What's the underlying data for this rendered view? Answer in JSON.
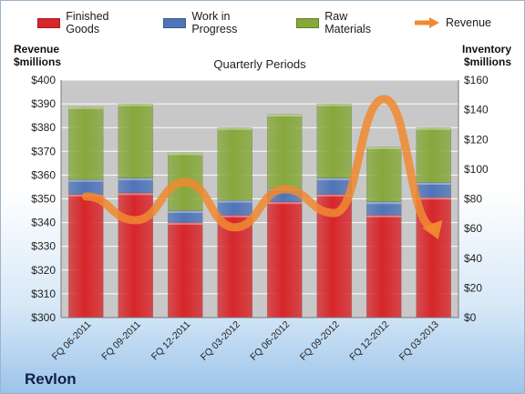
{
  "legend": {
    "finished": "Finished Goods",
    "wip": "Work in Progress",
    "raw": "Raw Materials",
    "revenue": "Revenue"
  },
  "axes": {
    "left_title_line1": "Revenue",
    "left_title_line2": "$millions",
    "right_title_line1": "Inventory",
    "right_title_line2": "$millions"
  },
  "chart_title": "Quarterly Periods",
  "company": "Revlon",
  "colors": {
    "finished": "#d7262a",
    "wip": "#4f74b8",
    "raw": "#86a83b",
    "revenue": "#f08a30",
    "plot_bg": "#c8c8c8"
  },
  "chart_data": {
    "type": "bar",
    "stacked": true,
    "categories": [
      "FQ 06-2011",
      "FQ 09-2011",
      "FQ 12-2011",
      "FQ 03-2012",
      "FQ 06-2012",
      "FQ 09-2012",
      "FQ 12-2012",
      "FQ 03-2013"
    ],
    "series": [
      {
        "name": "Finished Goods",
        "axis": "right",
        "values": [
          83,
          84,
          64,
          69,
          78,
          83,
          69,
          81
        ]
      },
      {
        "name": "Work in Progress",
        "axis": "right",
        "values": [
          10,
          10,
          8,
          10,
          9,
          11,
          9,
          10
        ]
      },
      {
        "name": "Raw Materials",
        "axis": "right",
        "values": [
          49,
          50,
          39,
          49,
          50,
          50,
          37,
          37
        ]
      },
      {
        "name": "Revenue",
        "axis": "left",
        "type": "line",
        "values": [
          351,
          341,
          357,
          338,
          354,
          344,
          392,
          338
        ]
      }
    ],
    "left_axis": {
      "ylim": [
        300,
        400
      ],
      "ticks": [
        "$300",
        "$310",
        "$320",
        "$330",
        "$340",
        "$350",
        "$360",
        "$370",
        "$380",
        "$390",
        "$400"
      ]
    },
    "right_axis": {
      "ylim": [
        0,
        160
      ],
      "ticks": [
        "$0",
        "$20",
        "$40",
        "$60",
        "$80",
        "$100",
        "$120",
        "$140",
        "$160"
      ]
    },
    "grid": true
  }
}
